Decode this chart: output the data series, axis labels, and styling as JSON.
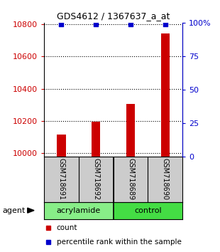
{
  "title": "GDS4612 / 1367637_a_at",
  "samples": [
    "GSM718691",
    "GSM718692",
    "GSM718689",
    "GSM718690"
  ],
  "counts": [
    10115,
    10195,
    10305,
    10745
  ],
  "percentile_ranks": [
    99,
    99,
    99,
    99
  ],
  "ylim_left": [
    9980,
    10810
  ],
  "ylim_right": [
    0,
    100
  ],
  "yticks_left": [
    10000,
    10200,
    10400,
    10600,
    10800
  ],
  "yticks_right": [
    0,
    25,
    50,
    75,
    100
  ],
  "ytick_labels_right": [
    "0",
    "25",
    "50",
    "75",
    "100%"
  ],
  "bar_color": "#cc0000",
  "percentile_color": "#0000cc",
  "groups": [
    {
      "label": "acrylamide",
      "samples": [
        0,
        1
      ],
      "color": "#88ee88"
    },
    {
      "label": "control",
      "samples": [
        2,
        3
      ],
      "color": "#44dd44"
    }
  ],
  "group_row_label": "agent",
  "legend_count_label": "count",
  "legend_percentile_label": "percentile rank within the sample",
  "bar_width": 0.25,
  "sample_box_color": "#cccccc",
  "grid_linestyle": ":"
}
